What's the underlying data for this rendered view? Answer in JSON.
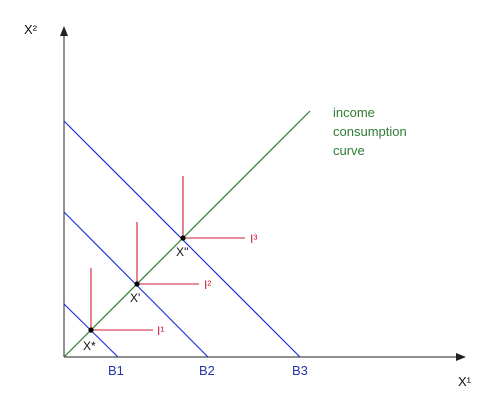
{
  "axes": {
    "x_label": "X¹",
    "y_label": "X²"
  },
  "budget_lines": [
    {
      "label": "B1"
    },
    {
      "label": "B2"
    },
    {
      "label": "B3"
    }
  ],
  "curve_label_lines": [
    "income",
    "consumption",
    "curve"
  ],
  "points": [
    {
      "label": "X*",
      "indifference_label": "I¹"
    },
    {
      "label": "X'",
      "indifference_label": "I²"
    },
    {
      "label": "X''",
      "indifference_label": "I³"
    }
  ],
  "colors": {
    "budget": "#2233dd",
    "icc": "#2e7d32",
    "indifference": "#cc2233",
    "axes": "#222222"
  }
}
